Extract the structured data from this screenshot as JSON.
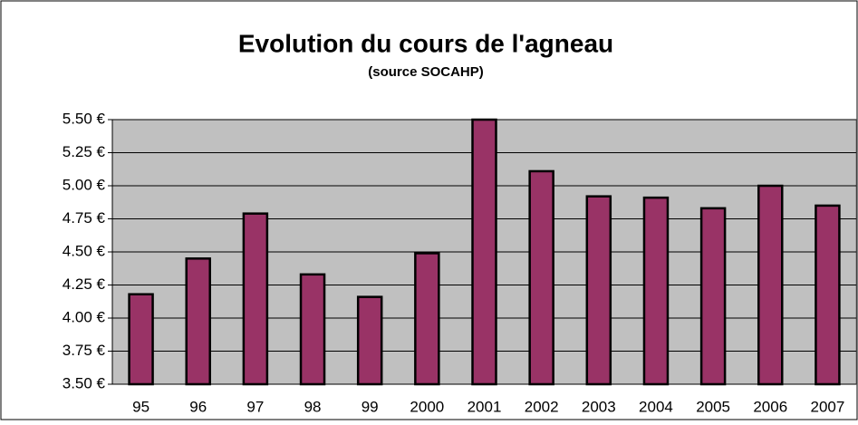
{
  "chart_data": {
    "type": "bar",
    "title": "Evolution du cours de l'agneau",
    "subtitle": "(source SOCAHP)",
    "categories": [
      "95",
      "96",
      "97",
      "98",
      "99",
      "2000",
      "2001",
      "2002",
      "2003",
      "2004",
      "2005",
      "2006",
      "2007"
    ],
    "values": [
      4.18,
      4.45,
      4.79,
      4.33,
      4.16,
      4.49,
      5.5,
      5.11,
      4.92,
      4.91,
      4.83,
      5.0,
      4.85
    ],
    "color": "#993366",
    "ylim": [
      3.5,
      5.5
    ],
    "yticks": [
      {
        "value": 3.5,
        "label": "3.50 €"
      },
      {
        "value": 3.75,
        "label": "3.75 €"
      },
      {
        "value": 4.0,
        "label": "4.00 €"
      },
      {
        "value": 4.25,
        "label": "4.25 €"
      },
      {
        "value": 4.5,
        "label": "4.50 €"
      },
      {
        "value": 4.75,
        "label": "4.75 €"
      },
      {
        "value": 5.0,
        "label": "5.00 €"
      },
      {
        "value": 5.25,
        "label": "5.25 €"
      },
      {
        "value": 5.5,
        "label": "5.50 €"
      }
    ],
    "grid": true
  }
}
